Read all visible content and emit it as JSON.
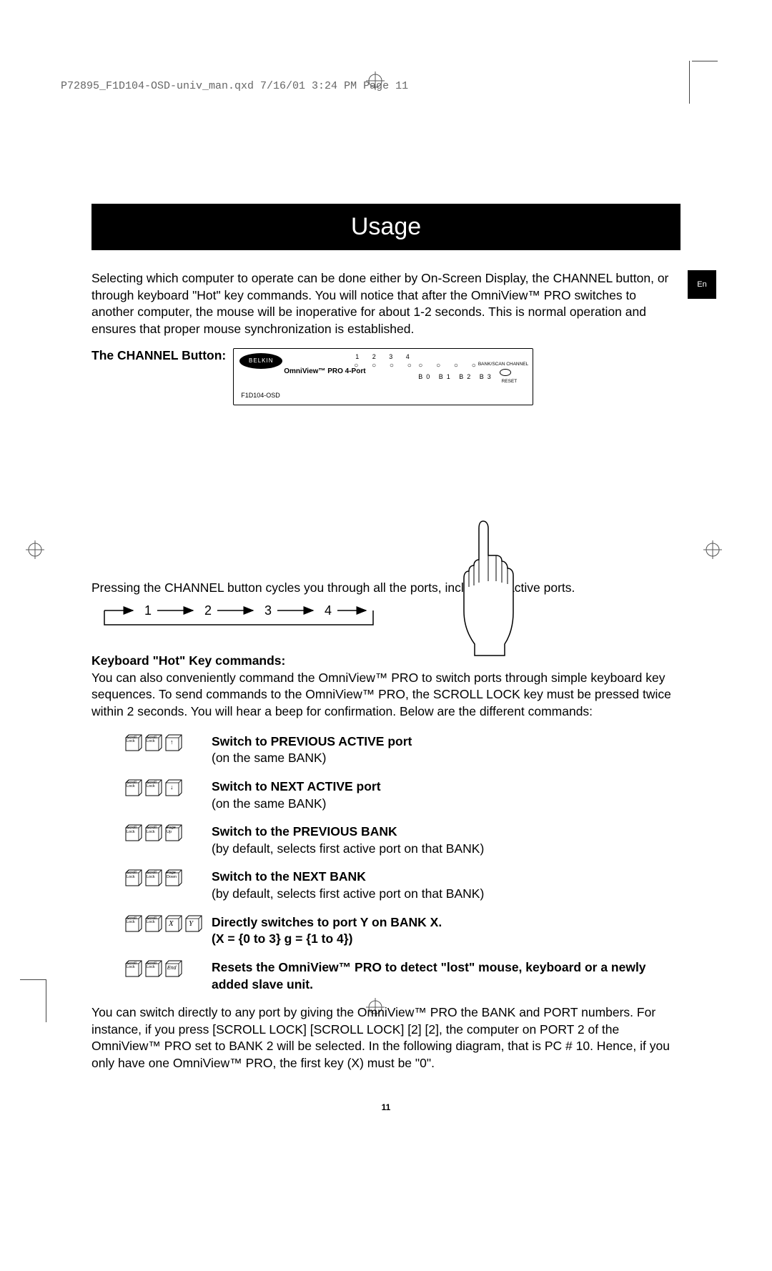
{
  "slugline": "P72895_F1D104-OSD-univ_man.qxd  7/16/01  3:24 PM   Page 11",
  "title": "Usage",
  "language_tab": "En",
  "intro": "Selecting which computer to operate can be done either by On-Screen Display, the CHANNEL button, or through keyboard \"Hot\" key commands. You will notice that after the OmniView™ PRO switches to another computer, the mouse will be inoperative for about 1-2 seconds. This is normal operation and ensures that proper mouse synchronization is established.",
  "channel_button_label": "The CHANNEL Button:",
  "device": {
    "logo": "BELKIN",
    "brand": "OmniView™ PRO 4-Port",
    "top_numbers": "1 2 3 4",
    "bank_numbers": "B0 B1 B2 B3",
    "model": "F1D104-OSD",
    "label_bank": "BANK/SCAN CHANNEL",
    "label_reset": "RESET"
  },
  "channel_cycle_text": "Pressing the CHANNEL button cycles you through all the ports, including inactive ports.",
  "sequence": [
    "1",
    "2",
    "3",
    "4"
  ],
  "hotkey_heading": "Keyboard \"Hot\" Key commands:",
  "hotkey_intro": "You can also conveniently command the OmniView™ PRO to switch ports through simple keyboard key sequences. To send commands to the OmniView™ PRO, the SCROLL LOCK key must be pressed twice within 2 seconds. You will hear a beep for confirmation. Below are the different commands:",
  "commands": [
    {
      "keys": [
        "Scroll Lock",
        "Scroll Lock",
        "↑"
      ],
      "title": "Switch to PREVIOUS ACTIVE port",
      "sub": "(on the same BANK)"
    },
    {
      "keys": [
        "Scroll Lock",
        "Scroll Lock",
        "↓"
      ],
      "title": "Switch to NEXT ACTIVE port",
      "sub": "(on the same BANK)"
    },
    {
      "keys": [
        "Scroll Lock",
        "Scroll Lock",
        "Page Up"
      ],
      "title": "Switch to the PREVIOUS BANK",
      "sub": "(by default, selects first active port on that BANK)"
    },
    {
      "keys": [
        "Scroll Lock",
        "Scroll Lock",
        "Page Down"
      ],
      "title": "Switch to the NEXT BANK",
      "sub": "(by default, selects first active port on that BANK)"
    },
    {
      "keys": [
        "Scroll Lock",
        "Scroll Lock",
        "X",
        "Y"
      ],
      "title": "Directly switches to port Y on BANK X.",
      "sub": "(X = {0 to 3} g = {1 to 4})",
      "sub_bold": true
    },
    {
      "keys": [
        "Scroll Lock",
        "Scroll Lock",
        "End"
      ],
      "title": "Resets the OmniView™ PRO to detect \"lost\" mouse, keyboard or a newly added slave unit.",
      "sub": ""
    }
  ],
  "final_para": "You can switch directly to any port by giving the OmniView™ PRO the BANK and PORT numbers. For instance, if you press [SCROLL LOCK] [SCROLL LOCK] [2] [2], the computer on PORT 2 of the OmniView™ PRO set to BANK 2 will be selected. In the following diagram, that is PC # 10. Hence, if you only have one OmniView™ PRO, the first key (X) must be \"0\".",
  "page_number": "11",
  "colors": {
    "black": "#000000",
    "white": "#ffffff",
    "slug": "#666666"
  }
}
